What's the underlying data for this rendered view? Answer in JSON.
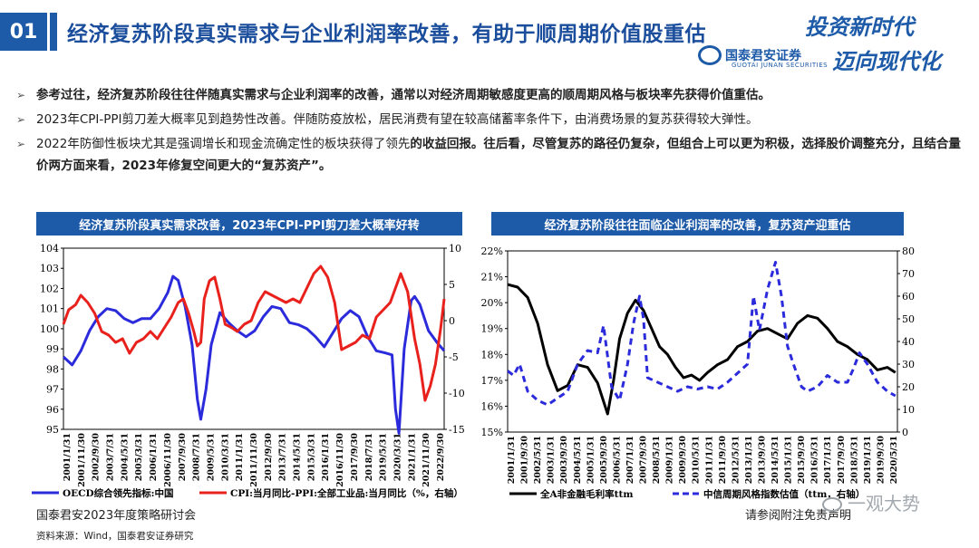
{
  "header": {
    "number": "01",
    "title": "经济复苏阶段真实需求与企业利润率改善，有助于顺周期价值股重估",
    "logo_cn": "国泰君安证券",
    "logo_en": "GUOTAI JUNAN SECURITIES",
    "slogan_line1": "投资新时代",
    "slogan_line2": "迈向现代化"
  },
  "bullets": [
    {
      "text": "参考过往，经济复苏阶段往往伴随真实需求与企业利润率的改善，通常以对经济周期敏感度更高的顺周期风格与板块率先获得价值重估。",
      "bold": true
    },
    {
      "text": "2023年CPI-PPI剪刀差大概率见到趋势性改善。伴随防疫放松，居民消费有望在较高储蓄率条件下，由消费场景的复苏获得较大弹性。",
      "bold": false
    },
    {
      "text": "2022年防御性板块尤其是强调增长和现金流确定性的板块获得了领先的收益回报。往后看，尽管复苏的路径仍复杂，但组合上可以更为积极，选择股价调整充分，且结合量价两方面来看，2023年修复空间更大的“复苏资产”。",
      "bold": false,
      "bold_from": 32
    }
  ],
  "footer": {
    "left": "国泰君安2023年度策略研讨会",
    "source": "资料来源：Wind，国泰君安证券研究",
    "right": "请参阅附注免责声明",
    "watermark": "一观大势"
  },
  "colors": {
    "brand": "#1d5aa8",
    "blue_series": "#2b2bdc",
    "red_series": "#e8211d",
    "black_series": "#000000"
  },
  "chart_data": [
    {
      "type": "line",
      "title": "经济复苏阶段真实需求改善，2023年CPI-PPI剪刀差大概率好转",
      "x_ticks": [
        "2001/1/31",
        "2001/11/30",
        "2002/9/30",
        "2003/7/31",
        "2004/5/31",
        "2005/3/31",
        "2006/1/31",
        "2006/11/30",
        "2007/9/30",
        "2008/7/31",
        "2009/5/31",
        "2010/3/31",
        "2011/1/31",
        "2011/11/30",
        "2012/9/30",
        "2013/7/31",
        "2014/5/31",
        "2015/3/31",
        "2016/1/31",
        "2016/11/30",
        "2017/9/30",
        "2018/7/31",
        "2019/5/31",
        "2020/3/31",
        "2021/1/31",
        "2021/11/30",
        "2022/9/30"
      ],
      "y_left": {
        "ticks": [
          "104",
          "103",
          "102",
          "101",
          "100",
          "99",
          "98",
          "97",
          "96",
          "95"
        ],
        "range": [
          95,
          104
        ]
      },
      "y_right": {
        "ticks": [
          "10",
          "5",
          "0",
          "-5",
          "-10",
          "-15"
        ],
        "range": [
          -15,
          10
        ]
      },
      "series": [
        {
          "name": "OECD综合领先指标:中国",
          "axis": "left",
          "color": "#2b2bdc",
          "x": [
            2001.0,
            2001.5,
            2002.0,
            2002.5,
            2003.0,
            2003.5,
            2004.0,
            2004.5,
            2005.0,
            2005.5,
            2006.0,
            2006.5,
            2007.0,
            2007.3,
            2007.6,
            2008.0,
            2008.4,
            2008.7,
            2008.9,
            2009.2,
            2009.5,
            2010.0,
            2010.5,
            2011.0,
            2011.5,
            2012.0,
            2012.5,
            2013.0,
            2013.5,
            2014.0,
            2014.5,
            2015.0,
            2015.5,
            2016.0,
            2016.5,
            2017.0,
            2017.5,
            2018.0,
            2018.5,
            2019.0,
            2019.5,
            2019.9,
            2020.1,
            2020.3,
            2020.6,
            2021.0,
            2021.2,
            2021.5,
            2022.0,
            2022.5,
            2022.9
          ],
          "values": [
            98.6,
            98.2,
            98.9,
            99.9,
            100.6,
            101.0,
            100.9,
            100.5,
            100.3,
            100.5,
            100.5,
            101.0,
            101.8,
            102.6,
            102.4,
            101.1,
            99.2,
            96.5,
            95.5,
            97.0,
            99.2,
            100.8,
            100.3,
            99.9,
            99.6,
            99.9,
            100.6,
            101.1,
            101.0,
            100.3,
            100.2,
            100.0,
            99.6,
            99.1,
            99.8,
            100.5,
            100.9,
            100.6,
            99.6,
            98.9,
            98.8,
            98.7,
            96.0,
            94.8,
            99.0,
            101.4,
            101.6,
            101.2,
            99.9,
            99.3,
            98.9
          ]
        },
        {
          "name": "CPI:当月同比-PPI:全部工业品:当月同比（%，右轴）",
          "axis": "right",
          "color": "#e8211d",
          "x": [
            2001.0,
            2001.3,
            2001.7,
            2002.0,
            2002.4,
            2002.8,
            2003.2,
            2003.6,
            2004.0,
            2004.4,
            2004.8,
            2005.2,
            2005.6,
            2006.0,
            2006.4,
            2006.8,
            2007.2,
            2007.6,
            2007.9,
            2008.2,
            2008.5,
            2008.7,
            2008.9,
            2009.1,
            2009.4,
            2009.7,
            2010.0,
            2010.3,
            2010.7,
            2011.0,
            2011.4,
            2011.8,
            2012.2,
            2012.6,
            2013.0,
            2013.4,
            2013.8,
            2014.2,
            2014.6,
            2015.0,
            2015.4,
            2015.8,
            2016.2,
            2016.6,
            2017.0,
            2017.4,
            2017.8,
            2018.2,
            2018.6,
            2019.0,
            2019.4,
            2019.8,
            2020.1,
            2020.4,
            2020.8,
            2021.2,
            2021.5,
            2021.8,
            2022.1,
            2022.4,
            2022.7,
            2022.9
          ],
          "values": [
            -0.5,
            1.5,
            2.2,
            3.5,
            2.5,
            1.0,
            -1.5,
            -2.0,
            -3.0,
            -2.5,
            -4.5,
            -3.0,
            -2.5,
            -1.5,
            -2.5,
            -1.0,
            0.5,
            2.5,
            3.0,
            1.0,
            -1.5,
            -3.5,
            -3.0,
            3.0,
            5.5,
            6.0,
            3.0,
            -0.5,
            -1.0,
            -1.5,
            -0.5,
            0.0,
            2.5,
            4.0,
            3.5,
            3.0,
            2.5,
            3.0,
            2.5,
            4.5,
            6.5,
            7.5,
            6.0,
            2.5,
            -4.0,
            -3.5,
            -3.0,
            -2.0,
            -2.5,
            0.5,
            1.5,
            2.5,
            4.5,
            6.5,
            4.0,
            -2.5,
            -6.0,
            -11.0,
            -9.0,
            -6.0,
            -1.0,
            3.0
          ]
        }
      ]
    },
    {
      "type": "line",
      "title": "经济复苏阶段往往面临企业利润率的改善，复苏资产迎重估",
      "x_ticks": [
        "2001/1/31",
        "2001/9/30",
        "2002/5/31",
        "2003/1/31",
        "2003/9/30",
        "2004/5/31",
        "2005/1/31",
        "2005/9/30",
        "2006/5/31",
        "2007/1/31",
        "2007/9/30",
        "2008/5/31",
        "2009/1/31",
        "2009/9/30",
        "2010/5/31",
        "2011/1/31",
        "2011/9/30",
        "2012/5/31",
        "2013/1/31",
        "2013/9/30",
        "2014/5/31",
        "2015/1/31",
        "2015/9/30",
        "2016/5/31",
        "2017/1/31",
        "2017/9/30",
        "2018/5/31",
        "2019/1/31",
        "2019/9/30",
        "2020/5/31"
      ],
      "y_left": {
        "ticks": [
          "22%",
          "21%",
          "20%",
          "19%",
          "18%",
          "17%",
          "16%",
          "15%"
        ],
        "range": [
          15,
          22
        ]
      },
      "y_right": {
        "ticks": [
          "80",
          "70",
          "60",
          "50",
          "40",
          "30",
          "20",
          "10",
          "0"
        ],
        "range": [
          0,
          80
        ]
      },
      "series": [
        {
          "name": "全A非金融毛利率ttm",
          "axis": "left",
          "color": "#000000",
          "x": [
            2001.0,
            2001.5,
            2002.0,
            2002.5,
            2003.0,
            2003.5,
            2004.0,
            2004.5,
            2005.0,
            2005.5,
            2006.0,
            2006.3,
            2006.6,
            2007.0,
            2007.4,
            2007.8,
            2008.2,
            2008.6,
            2009.0,
            2009.4,
            2009.8,
            2010.2,
            2010.6,
            2011.0,
            2011.5,
            2012.0,
            2012.5,
            2013.0,
            2013.5,
            2014.0,
            2014.5,
            2015.0,
            2015.5,
            2016.0,
            2016.5,
            2017.0,
            2017.5,
            2018.0,
            2018.5,
            2019.0,
            2019.5,
            2020.0,
            2020.4
          ],
          "values": [
            20.7,
            20.6,
            20.2,
            19.2,
            17.6,
            16.6,
            16.8,
            17.6,
            17.5,
            16.9,
            15.7,
            17.0,
            18.6,
            19.6,
            20.1,
            19.7,
            19.0,
            18.3,
            18.0,
            17.5,
            17.1,
            17.2,
            17.0,
            17.3,
            17.6,
            17.8,
            18.3,
            18.5,
            18.9,
            19.0,
            18.8,
            18.6,
            19.2,
            19.5,
            19.4,
            19.0,
            18.5,
            18.3,
            18.0,
            17.8,
            17.4,
            17.5,
            17.3
          ]
        },
        {
          "name": "中信周期风格指数估值（ttm，右轴）",
          "axis": "right",
          "color": "#2b2bdc",
          "dashed": true,
          "x": [
            2001.0,
            2001.3,
            2001.6,
            2002.0,
            2002.5,
            2003.0,
            2003.5,
            2004.0,
            2004.5,
            2005.0,
            2005.5,
            2005.8,
            2006.2,
            2006.6,
            2007.0,
            2007.3,
            2007.6,
            2007.8,
            2008.0,
            2008.5,
            2009.0,
            2009.5,
            2010.0,
            2010.5,
            2011.0,
            2011.5,
            2012.0,
            2012.5,
            2013.0,
            2013.3,
            2013.6,
            2014.0,
            2014.4,
            2014.7,
            2015.0,
            2015.3,
            2015.7,
            2016.0,
            2016.5,
            2017.0,
            2017.5,
            2018.0,
            2018.3,
            2018.6,
            2019.0,
            2019.5,
            2020.0,
            2020.4
          ],
          "values": [
            27,
            25,
            30,
            18,
            14,
            12,
            15,
            18,
            30,
            36,
            35,
            47,
            20,
            14,
            30,
            48,
            60,
            50,
            24,
            22,
            20,
            18,
            20,
            19,
            20,
            19,
            22,
            26,
            30,
            60,
            45,
            63,
            75,
            60,
            38,
            30,
            20,
            18,
            20,
            25,
            22,
            22,
            28,
            35,
            30,
            22,
            18,
            16
          ]
        }
      ]
    }
  ]
}
